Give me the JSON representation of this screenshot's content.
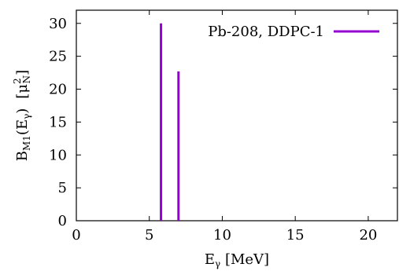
{
  "chart_data": {
    "type": "bar",
    "series": [
      {
        "name": "Pb-208, DDPC-1",
        "color": "#9400d3",
        "x": [
          5.8,
          7.0
        ],
        "values": [
          30.0,
          22.7
        ]
      }
    ],
    "xlabel": {
      "main": "E",
      "sub": "γ",
      "rest": " [MeV]"
    },
    "ylabel": {
      "main": "B",
      "sub": "M1",
      "paren_open": "(E",
      "paren_sub": "γ",
      "paren_close": ")",
      "unit_open": "[μ",
      "unit_sup": "2",
      "unit_sub": "N",
      "unit_close": "]"
    },
    "xlim": [
      0,
      22
    ],
    "ylim": [
      0,
      32
    ],
    "xticks": [
      0,
      5,
      10,
      15,
      20
    ],
    "yticks": [
      0,
      5,
      10,
      15,
      20,
      25,
      30
    ],
    "grid": false,
    "legend_position": "top-right"
  }
}
